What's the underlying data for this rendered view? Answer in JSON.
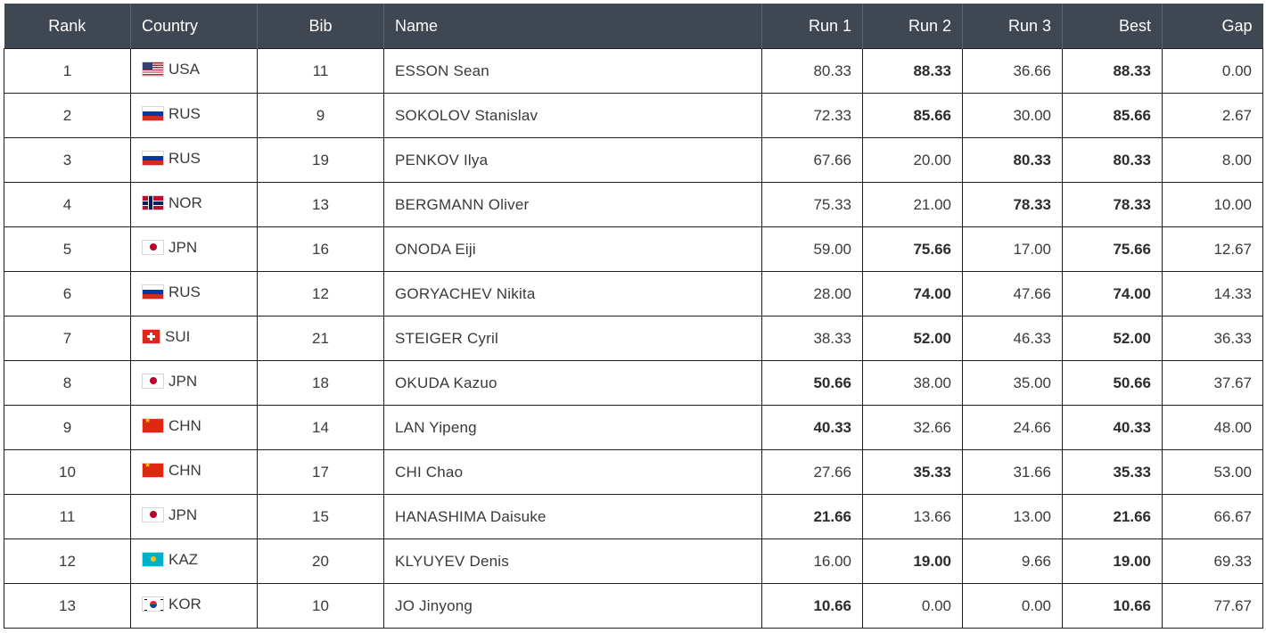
{
  "table": {
    "headers": {
      "rank": "Rank",
      "country": "Country",
      "bib": "Bib",
      "name": "Name",
      "run1": "Run 1",
      "run2": "Run 2",
      "run3": "Run 3",
      "best": "Best",
      "gap": "Gap"
    },
    "rows": [
      {
        "rank": "1",
        "country": "USA",
        "flag": "usa-flag",
        "bib": "11",
        "name": "ESSON Sean",
        "run1": "80.33",
        "run2": "88.33",
        "run3": "36.66",
        "best": "88.33",
        "gap": "0.00",
        "best_run": "run2"
      },
      {
        "rank": "2",
        "country": "RUS",
        "flag": "rus-flag",
        "bib": "9",
        "name": "SOKOLOV Stanislav",
        "run1": "72.33",
        "run2": "85.66",
        "run3": "30.00",
        "best": "85.66",
        "gap": "2.67",
        "best_run": "run2"
      },
      {
        "rank": "3",
        "country": "RUS",
        "flag": "rus-flag",
        "bib": "19",
        "name": "PENKOV Ilya",
        "run1": "67.66",
        "run2": "20.00",
        "run3": "80.33",
        "best": "80.33",
        "gap": "8.00",
        "best_run": "run3"
      },
      {
        "rank": "4",
        "country": "NOR",
        "flag": "nor-flag",
        "bib": "13",
        "name": "BERGMANN Oliver",
        "run1": "75.33",
        "run2": "21.00",
        "run3": "78.33",
        "best": "78.33",
        "gap": "10.00",
        "best_run": "run3"
      },
      {
        "rank": "5",
        "country": "JPN",
        "flag": "jpn-flag",
        "bib": "16",
        "name": "ONODA Eiji",
        "run1": "59.00",
        "run2": "75.66",
        "run3": "17.00",
        "best": "75.66",
        "gap": "12.67",
        "best_run": "run2"
      },
      {
        "rank": "6",
        "country": "RUS",
        "flag": "rus-flag",
        "bib": "12",
        "name": "GORYACHEV Nikita",
        "run1": "28.00",
        "run2": "74.00",
        "run3": "47.66",
        "best": "74.00",
        "gap": "14.33",
        "best_run": "run2"
      },
      {
        "rank": "7",
        "country": "SUI",
        "flag": "sui-flag",
        "bib": "21",
        "name": "STEIGER Cyril",
        "run1": "38.33",
        "run2": "52.00",
        "run3": "46.33",
        "best": "52.00",
        "gap": "36.33",
        "best_run": "run2"
      },
      {
        "rank": "8",
        "country": "JPN",
        "flag": "jpn-flag",
        "bib": "18",
        "name": "OKUDA Kazuo",
        "run1": "50.66",
        "run2": "38.00",
        "run3": "35.00",
        "best": "50.66",
        "gap": "37.67",
        "best_run": "run1"
      },
      {
        "rank": "9",
        "country": "CHN",
        "flag": "chn-flag",
        "bib": "14",
        "name": "LAN Yipeng",
        "run1": "40.33",
        "run2": "32.66",
        "run3": "24.66",
        "best": "40.33",
        "gap": "48.00",
        "best_run": "run1"
      },
      {
        "rank": "10",
        "country": "CHN",
        "flag": "chn-flag",
        "bib": "17",
        "name": "CHI Chao",
        "run1": "27.66",
        "run2": "35.33",
        "run3": "31.66",
        "best": "35.33",
        "gap": "53.00",
        "best_run": "run2"
      },
      {
        "rank": "11",
        "country": "JPN",
        "flag": "jpn-flag",
        "bib": "15",
        "name": "HANASHIMA Daisuke",
        "run1": "21.66",
        "run2": "13.66",
        "run3": "13.00",
        "best": "21.66",
        "gap": "66.67",
        "best_run": "run1"
      },
      {
        "rank": "12",
        "country": "KAZ",
        "flag": "kaz-flag",
        "bib": "20",
        "name": "KLYUYEV Denis",
        "run1": "16.00",
        "run2": "19.00",
        "run3": "9.66",
        "best": "19.00",
        "gap": "69.33",
        "best_run": "run2"
      },
      {
        "rank": "13",
        "country": "KOR",
        "flag": "kor-flag",
        "bib": "10",
        "name": "JO Jinyong",
        "run1": "10.66",
        "run2": "0.00",
        "run3": "0.00",
        "best": "10.66",
        "gap": "77.67",
        "best_run": "run1"
      }
    ]
  },
  "colors": {
    "header_bg": "#3f4753",
    "header_text": "#ffffff",
    "cell_border": "#1e1e1e",
    "cell_text": "#3a3a3a"
  }
}
